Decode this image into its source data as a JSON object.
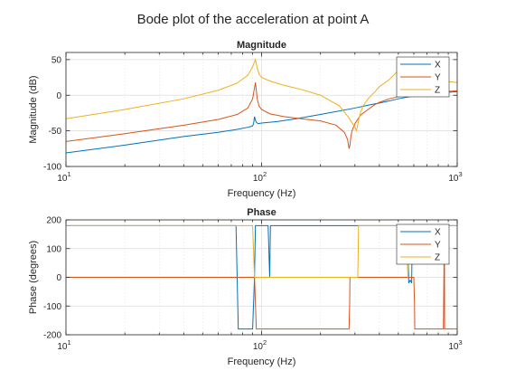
{
  "figure": {
    "title": "Bode plot of the acceleration at point A"
  },
  "chart_data": [
    {
      "type": "line",
      "title": "Magnitude",
      "xlabel": "Frequency (Hz)",
      "ylabel": "Magnitude (dB)",
      "xscale": "log",
      "xlim": [
        10,
        1000
      ],
      "ylim": [
        -100,
        60
      ],
      "xticks": [
        10,
        100,
        1000
      ],
      "xtick_base": "10",
      "xtick_exponents": [
        "1",
        "2",
        "3"
      ],
      "yticks": [
        -100,
        -50,
        0,
        50
      ],
      "ytick_labels": [
        "-100",
        "-50",
        "0",
        "50"
      ],
      "grid": true,
      "legend": "top-right",
      "series": [
        {
          "name": "X",
          "color": "#0072BD",
          "x": [
            10,
            20,
            40,
            60,
            75,
            85,
            88,
            90,
            91,
            92,
            93,
            94,
            96,
            100,
            120,
            150,
            200,
            250,
            300,
            350,
            400,
            450,
            500,
            600,
            700,
            800,
            1000
          ],
          "y": [
            -81,
            -70,
            -58,
            -52,
            -48,
            -45,
            -44,
            -43,
            -40,
            -30,
            -35,
            -38,
            -40,
            -39,
            -37,
            -33,
            -27,
            -22,
            -18,
            -14,
            -11,
            -8,
            -5,
            -1,
            1,
            3,
            5
          ]
        },
        {
          "name": "Y",
          "color": "#D95319",
          "x": [
            10,
            20,
            40,
            60,
            75,
            85,
            90,
            93,
            95,
            97,
            100,
            110,
            130,
            160,
            200,
            240,
            265,
            275,
            280,
            283,
            286,
            290,
            300,
            320,
            350,
            380,
            400,
            450,
            500,
            600,
            700,
            800,
            1000
          ],
          "y": [
            -65,
            -54,
            -42,
            -34,
            -27,
            -18,
            -5,
            18,
            -5,
            -15,
            -20,
            -26,
            -30,
            -33,
            -36,
            -42,
            -52,
            -62,
            -75,
            -70,
            -58,
            -50,
            -40,
            -28,
            -20,
            -13,
            -10,
            -5,
            -2,
            2,
            4,
            5,
            6
          ]
        },
        {
          "name": "Z",
          "color": "#EDB120",
          "x": [
            10,
            20,
            40,
            60,
            75,
            85,
            90,
            93,
            95,
            97,
            100,
            110,
            130,
            160,
            200,
            250,
            280,
            300,
            305,
            310,
            315,
            320,
            330,
            350,
            380,
            400,
            450,
            500,
            550,
            600,
            700,
            800,
            1000
          ],
          "y": [
            -33,
            -20,
            -5,
            7,
            17,
            28,
            40,
            50,
            38,
            30,
            25,
            20,
            14,
            8,
            0,
            -15,
            -32,
            -45,
            -50,
            -42,
            -32,
            -25,
            -15,
            -5,
            5,
            12,
            22,
            35,
            50,
            40,
            25,
            20,
            18
          ]
        }
      ]
    },
    {
      "type": "line",
      "title": "Phase",
      "xlabel": "Frequency (Hz)",
      "ylabel": "Phase (degrees)",
      "xscale": "log",
      "xlim": [
        10,
        1000
      ],
      "ylim": [
        -200,
        200
      ],
      "xticks": [
        10,
        100,
        1000
      ],
      "xtick_base": "10",
      "xtick_exponents": [
        "1",
        "2",
        "3"
      ],
      "yticks": [
        -200,
        -100,
        0,
        100,
        200
      ],
      "ytick_labels": [
        "-200",
        "-100",
        "0",
        "100",
        "200"
      ],
      "grid": true,
      "legend": "top-right",
      "series": [
        {
          "name": "X",
          "color": "#0072BD",
          "x": [
            10,
            74,
            75,
            76,
            90,
            92,
            93,
            108,
            110,
            111,
            560,
            565,
            575,
            585,
            590,
            600,
            1000
          ],
          "y": [
            180,
            180,
            0,
            -180,
            -180,
            0,
            180,
            180,
            0,
            180,
            180,
            -20,
            -10,
            -20,
            180,
            180,
            180
          ]
        },
        {
          "name": "Y",
          "color": "#D95319",
          "x": [
            10,
            92,
            93,
            94,
            280,
            282,
            283,
            600,
            605,
            607,
            850,
            860,
            862,
            1000
          ],
          "y": [
            0,
            0,
            -90,
            -180,
            -180,
            -90,
            0,
            0,
            -90,
            -180,
            -180,
            180,
            -180,
            -180
          ]
        },
        {
          "name": "Z",
          "color": "#EDB120",
          "x": [
            10,
            90,
            91,
            92,
            310,
            312,
            313,
            545,
            560,
            570,
            580,
            1000
          ],
          "y": [
            180,
            180,
            90,
            0,
            0,
            90,
            180,
            180,
            0,
            180,
            180,
            180
          ]
        }
      ]
    }
  ]
}
